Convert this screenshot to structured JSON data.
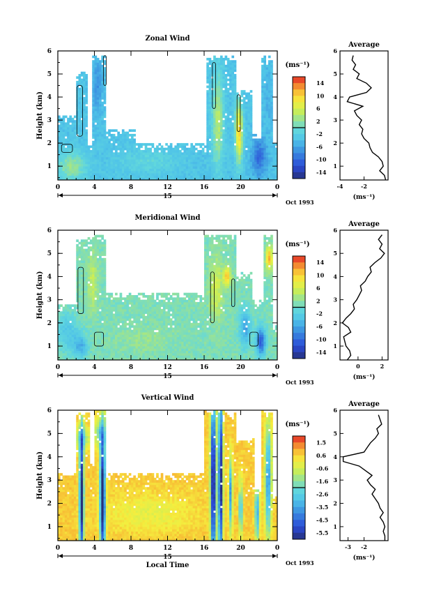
{
  "chart_data": [
    {
      "type": "heatmap",
      "title": "Zonal Wind",
      "ylabel": "Height (km)",
      "ylim": [
        0.4,
        6
      ],
      "yticks": [
        "1",
        "2",
        "3",
        "4",
        "5",
        "6"
      ],
      "xlim": [
        0,
        24
      ],
      "xticks": [
        "0",
        "4",
        "8",
        "12",
        "16",
        "20",
        "0"
      ],
      "day_label": "15",
      "date_label": "Oct 1993",
      "colorbar": {
        "unit": "(ms⁻¹)",
        "ticks": [
          "14",
          "10",
          "6",
          "2",
          "-2",
          "-6",
          "-10",
          "-14"
        ],
        "range": [
          -16,
          16
        ]
      },
      "field": {
        "background": -3.5,
        "blobs": [
          {
            "x": 1.5,
            "y": 1.0,
            "sx": 1.6,
            "sy": 0.6,
            "v": 2.5
          },
          {
            "x": 2.7,
            "y": 4.5,
            "sx": 0.5,
            "sy": 1.1,
            "v": -3.5
          },
          {
            "x": 4.3,
            "y": 4.5,
            "sx": 0.55,
            "sy": 1.2,
            "v": -7
          },
          {
            "x": 10.0,
            "y": 1.2,
            "sx": 3.0,
            "sy": 0.5,
            "v": -1
          },
          {
            "x": 17.5,
            "y": 3.0,
            "sx": 0.6,
            "sy": 2.0,
            "v": 4
          },
          {
            "x": 19.8,
            "y": 2.5,
            "sx": 0.4,
            "sy": 1.3,
            "v": 10
          },
          {
            "x": 22.0,
            "y": 1.4,
            "sx": 0.8,
            "sy": 0.8,
            "v": -10
          },
          {
            "x": 23.0,
            "y": 4.0,
            "sx": 0.5,
            "sy": 1.5,
            "v": -5
          }
        ],
        "coverage": [
          {
            "x0": 0,
            "x1": 24,
            "top": 2.0
          },
          {
            "x0": 0,
            "x1": 2,
            "top": 3.2
          },
          {
            "x0": 1.9,
            "x1": 3.2,
            "top": 5.1
          },
          {
            "x0": 3.8,
            "x1": 5.2,
            "top": 5.8
          },
          {
            "x0": 5.2,
            "x1": 8.5,
            "top": 2.6
          },
          {
            "x0": 16.2,
            "x1": 19.5,
            "top": 5.8
          },
          {
            "x0": 19.5,
            "x1": 21.3,
            "top": 4.3
          },
          {
            "x0": 21.3,
            "x1": 22.3,
            "top": 2.4
          },
          {
            "x0": 22.3,
            "x1": 23.6,
            "top": 5.8
          }
        ],
        "zero_contour": [
          {
            "x": 2.1,
            "y": 2.3,
            "w": 0.6,
            "h": 2.2
          },
          {
            "x": 5.0,
            "y": 4.5,
            "w": 0.3,
            "h": 1.3
          },
          {
            "x": 16.9,
            "y": 3.5,
            "w": 0.35,
            "h": 2.0
          },
          {
            "x": 19.6,
            "y": 2.5,
            "w": 0.35,
            "h": 1.6
          },
          {
            "x": 0.4,
            "y": 1.6,
            "w": 1.2,
            "h": 0.35
          }
        ]
      },
      "profile": {
        "title": "Average",
        "xlim": [
          -4,
          0
        ],
        "xticks": [
          "-4",
          "-2"
        ],
        "xtick_values": [
          -4,
          -2
        ],
        "xlabel": "(ms⁻¹)",
        "heights": [
          0.4,
          0.6,
          0.8,
          1.0,
          1.2,
          1.4,
          1.6,
          1.8,
          2.0,
          2.2,
          2.4,
          2.6,
          2.8,
          3.0,
          3.2,
          3.4,
          3.6,
          3.8,
          4.0,
          4.2,
          4.4,
          4.6,
          4.8,
          5.0,
          5.2,
          5.4,
          5.6,
          5.8
        ],
        "values": [
          -0.2,
          -0.3,
          -0.7,
          -0.4,
          -0.5,
          -0.8,
          -1.3,
          -1.5,
          -1.6,
          -2.0,
          -2.2,
          -2.1,
          -2.4,
          -2.2,
          -2.6,
          -2.8,
          -2.1,
          -3.4,
          -3.2,
          -1.8,
          -1.4,
          -1.8,
          -2.6,
          -2.4,
          -2.9,
          -2.7,
          -3.0,
          -2.9
        ]
      }
    },
    {
      "type": "heatmap",
      "title": "Meridional Wind",
      "ylabel": "Height (km)",
      "ylim": [
        0.4,
        6
      ],
      "yticks": [
        "1",
        "2",
        "3",
        "4",
        "5",
        "6"
      ],
      "xlim": [
        0,
        24
      ],
      "xticks": [
        "0",
        "4",
        "8",
        "12",
        "16",
        "20",
        "0"
      ],
      "day_label": "15",
      "date_label": "Oct 1993",
      "colorbar": {
        "unit": "(ms⁻¹)",
        "ticks": [
          "14",
          "10",
          "6",
          "2",
          "-2",
          "-6",
          "-10",
          "-14"
        ],
        "range": [
          -16,
          16
        ]
      },
      "field": {
        "background": 1.0,
        "blobs": [
          {
            "x": 1.0,
            "y": 1.6,
            "sx": 1.2,
            "sy": 0.8,
            "v": -3
          },
          {
            "x": 3.8,
            "y": 3.8,
            "sx": 0.5,
            "sy": 1.2,
            "v": 5
          },
          {
            "x": 2.5,
            "y": 1.0,
            "sx": 0.8,
            "sy": 0.5,
            "v": -5
          },
          {
            "x": 9.5,
            "y": 1.3,
            "sx": 3.0,
            "sy": 0.5,
            "v": 2.5
          },
          {
            "x": 17.3,
            "y": 3.5,
            "sx": 0.7,
            "sy": 1.3,
            "v": 6
          },
          {
            "x": 18.5,
            "y": 4.0,
            "sx": 0.4,
            "sy": 0.4,
            "v": 11
          },
          {
            "x": 20.5,
            "y": 1.8,
            "sx": 0.6,
            "sy": 0.8,
            "v": -6
          },
          {
            "x": 23.1,
            "y": 4.8,
            "sx": 0.35,
            "sy": 0.5,
            "v": 12
          },
          {
            "x": 22.2,
            "y": 1.2,
            "sx": 0.5,
            "sy": 0.6,
            "v": -11
          }
        ],
        "coverage": [
          {
            "x0": 0,
            "x1": 24,
            "top": 2.0
          },
          {
            "x0": 0,
            "x1": 2.0,
            "top": 2.8
          },
          {
            "x0": 2.0,
            "x1": 3.3,
            "top": 5.6
          },
          {
            "x0": 3.3,
            "x1": 5.3,
            "top": 5.8
          },
          {
            "x0": 5.3,
            "x1": 16.0,
            "top": 3.3
          },
          {
            "x0": 16.0,
            "x1": 19.5,
            "top": 5.8
          },
          {
            "x0": 19.5,
            "x1": 21.3,
            "top": 4.2
          },
          {
            "x0": 21.3,
            "x1": 22.4,
            "top": 3.0
          },
          {
            "x0": 22.4,
            "x1": 23.6,
            "top": 5.8
          }
        ],
        "zero_contour": [
          {
            "x": 2.2,
            "y": 2.4,
            "w": 0.6,
            "h": 2.0
          },
          {
            "x": 4.0,
            "y": 1.0,
            "w": 1.0,
            "h": 0.6
          },
          {
            "x": 16.7,
            "y": 2.0,
            "w": 0.4,
            "h": 2.2
          },
          {
            "x": 19.0,
            "y": 2.7,
            "w": 0.35,
            "h": 1.2
          },
          {
            "x": 21.0,
            "y": 1.0,
            "w": 0.9,
            "h": 0.6
          }
        ]
      },
      "profile": {
        "title": "Average",
        "xlim": [
          -1.5,
          2.5
        ],
        "xticks": [
          "0",
          "2"
        ],
        "xtick_values": [
          0,
          2
        ],
        "xlabel": "(ms⁻¹)",
        "heights": [
          0.4,
          0.6,
          0.8,
          1.0,
          1.2,
          1.4,
          1.6,
          1.8,
          2.0,
          2.2,
          2.4,
          2.6,
          2.8,
          3.0,
          3.2,
          3.4,
          3.6,
          3.8,
          4.0,
          4.2,
          4.4,
          4.6,
          4.8,
          5.0,
          5.2,
          5.4,
          5.6,
          5.8
        ],
        "values": [
          -0.9,
          -0.6,
          -0.7,
          -1.0,
          -1.1,
          -1.2,
          -0.6,
          -0.8,
          -1.3,
          -1.0,
          -0.6,
          -0.3,
          -0.4,
          -0.1,
          0.1,
          0.3,
          0.2,
          0.6,
          0.8,
          1.1,
          1.0,
          1.4,
          1.9,
          2.2,
          1.8,
          2.0,
          1.7,
          2.0
        ]
      }
    },
    {
      "type": "heatmap",
      "title": "Vertical Wind",
      "ylabel": "Height (km)",
      "xlabel": "Local Time",
      "ylim": [
        0.4,
        6
      ],
      "yticks": [
        "1",
        "2",
        "3",
        "4",
        "5",
        "6"
      ],
      "xlim": [
        0,
        24
      ],
      "xticks": [
        "0",
        "4",
        "8",
        "12",
        "16",
        "20",
        "0"
      ],
      "day_label": "15",
      "date_label": "Oct 1993",
      "colorbar": {
        "unit": "(ms⁻¹)",
        "ticks": [
          "1.5",
          "0.6",
          "-0.6",
          "-1.6",
          "-2.6",
          "-3.5",
          "-4.5",
          "-5.5"
        ],
        "range": [
          -6.0,
          2.0
        ]
      },
      "field": {
        "background": 0.6,
        "blobs": [
          {
            "x": 10.0,
            "y": 1.6,
            "sx": 5.0,
            "sy": 0.8,
            "v": -0.2
          },
          {
            "x": 2.6,
            "y": 2.3,
            "sx": 0.25,
            "sy": 3.0,
            "v": -6.5
          },
          {
            "x": 4.9,
            "y": 2.3,
            "sx": 0.3,
            "sy": 3.0,
            "v": -6.5
          },
          {
            "x": 2.7,
            "y": 4.8,
            "sx": 0.8,
            "sy": 0.5,
            "v": -1.5
          },
          {
            "x": 4.6,
            "y": 5.0,
            "sx": 0.6,
            "sy": 0.6,
            "v": -1.8
          },
          {
            "x": 17.0,
            "y": 3.0,
            "sx": 0.3,
            "sy": 4.0,
            "v": -6.5
          },
          {
            "x": 17.8,
            "y": 3.0,
            "sx": 0.25,
            "sy": 4.0,
            "v": -6.5
          },
          {
            "x": 18.9,
            "y": 2.4,
            "sx": 0.2,
            "sy": 1.5,
            "v": -3.8
          },
          {
            "x": 20.0,
            "y": 1.8,
            "sx": 0.2,
            "sy": 1.2,
            "v": -3.0
          },
          {
            "x": 21.8,
            "y": 1.6,
            "sx": 0.25,
            "sy": 1.2,
            "v": -3.5
          },
          {
            "x": 23.0,
            "y": 3.0,
            "sx": 0.35,
            "sy": 2.5,
            "v": -3.8
          },
          {
            "x": 19.8,
            "y": 2.6,
            "sx": 0.12,
            "sy": 0.12,
            "v": 1.8
          }
        ],
        "coverage": [
          {
            "x0": 0,
            "x1": 24,
            "top": 2.3
          },
          {
            "x0": 0,
            "x1": 2.0,
            "top": 3.3
          },
          {
            "x0": 2.0,
            "x1": 3.6,
            "top": 5.9
          },
          {
            "x0": 3.6,
            "x1": 4.1,
            "top": 3.8
          },
          {
            "x0": 4.1,
            "x1": 5.3,
            "top": 6.0
          },
          {
            "x0": 5.3,
            "x1": 16.0,
            "top": 3.3
          },
          {
            "x0": 16.0,
            "x1": 19.6,
            "top": 6.0
          },
          {
            "x0": 19.6,
            "x1": 21.4,
            "top": 4.8
          },
          {
            "x0": 21.4,
            "x1": 22.3,
            "top": 2.6
          },
          {
            "x0": 22.3,
            "x1": 23.5,
            "top": 6.0
          }
        ],
        "zero_contour": []
      },
      "profile": {
        "title": "Average",
        "xlim": [
          -3.5,
          -0.5
        ],
        "xticks": [
          "-3",
          "-2"
        ],
        "xtick_values": [
          -3,
          -2
        ],
        "xlabel": "(ms⁻¹)",
        "heights": [
          0.4,
          0.6,
          0.8,
          1.0,
          1.2,
          1.4,
          1.6,
          1.8,
          2.0,
          2.2,
          2.4,
          2.6,
          2.8,
          3.0,
          3.2,
          3.4,
          3.6,
          3.8,
          4.0,
          4.2,
          4.4,
          4.6,
          4.8,
          5.0,
          5.2,
          5.4,
          5.6,
          5.8
        ],
        "values": [
          -0.7,
          -0.7,
          -0.8,
          -0.7,
          -0.8,
          -1.0,
          -0.8,
          -1.0,
          -1.1,
          -1.3,
          -1.5,
          -1.3,
          -1.6,
          -1.8,
          -1.5,
          -1.9,
          -2.3,
          -3.3,
          -3.3,
          -2.0,
          -1.8,
          -1.6,
          -1.3,
          -1.1,
          -1.2,
          -0.9,
          -1.0,
          -1.1
        ]
      }
    }
  ]
}
